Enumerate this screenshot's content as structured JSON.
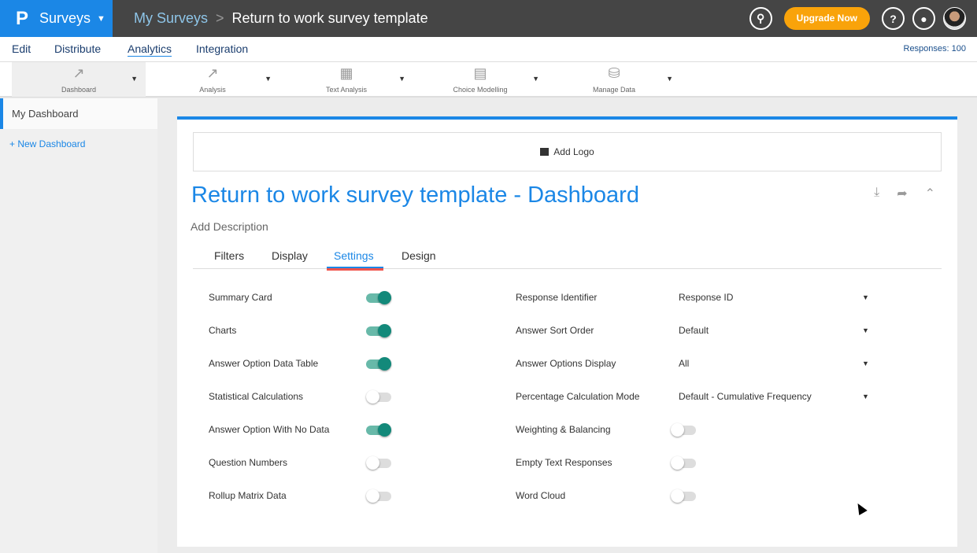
{
  "brand": {
    "logo": "P",
    "name": "Surveys"
  },
  "breadcrumb": {
    "parent": "My Surveys",
    "current": "Return to work survey template"
  },
  "header": {
    "upgrade": "Upgrade Now"
  },
  "nav": {
    "items": [
      "Edit",
      "Distribute",
      "Analytics",
      "Integration"
    ],
    "active": "Analytics",
    "responses": "Responses: 100"
  },
  "toolbar": [
    {
      "label": "Dashboard",
      "icon": "line-chart-icon"
    },
    {
      "label": "Analysis",
      "icon": "analysis-chart-icon"
    },
    {
      "label": "Text Analysis",
      "icon": "text-analysis-icon"
    },
    {
      "label": "Choice Modelling",
      "icon": "choice-modelling-icon"
    },
    {
      "label": "Manage Data",
      "icon": "database-icon"
    }
  ],
  "sidebar": {
    "dashboard": "My Dashboard",
    "new": "+ New Dashboard"
  },
  "main": {
    "add_logo": "Add Logo",
    "title": "Return to work survey template - Dashboard",
    "description": "Add Description",
    "tabs": [
      "Filters",
      "Display",
      "Settings",
      "Design"
    ],
    "active_tab": "Settings"
  },
  "settings_left": [
    {
      "label": "Summary Card",
      "on": true
    },
    {
      "label": "Charts",
      "on": true
    },
    {
      "label": "Answer Option Data Table",
      "on": true
    },
    {
      "label": "Statistical Calculations",
      "on": false
    },
    {
      "label": "Answer Option With No Data",
      "on": true
    },
    {
      "label": "Question Numbers",
      "on": false
    },
    {
      "label": "Rollup Matrix Data",
      "on": false
    }
  ],
  "settings_right": [
    {
      "label": "Response Identifier",
      "value": "Response ID"
    },
    {
      "label": "Answer Sort Order",
      "value": "Default"
    },
    {
      "label": "Answer Options Display",
      "value": "All"
    },
    {
      "label": "Percentage Calculation Mode",
      "value": "Default - Cumulative Frequency"
    },
    {
      "label": "Weighting & Balancing",
      "on": false
    },
    {
      "label": "Empty Text Responses",
      "on": false
    },
    {
      "label": "Word Cloud",
      "on": false
    }
  ],
  "colors": {
    "brand": "#1b87e6",
    "upgrade": "#f9a30a",
    "toggle_on": "#13897a",
    "tab_highlight": "#f0534b"
  }
}
